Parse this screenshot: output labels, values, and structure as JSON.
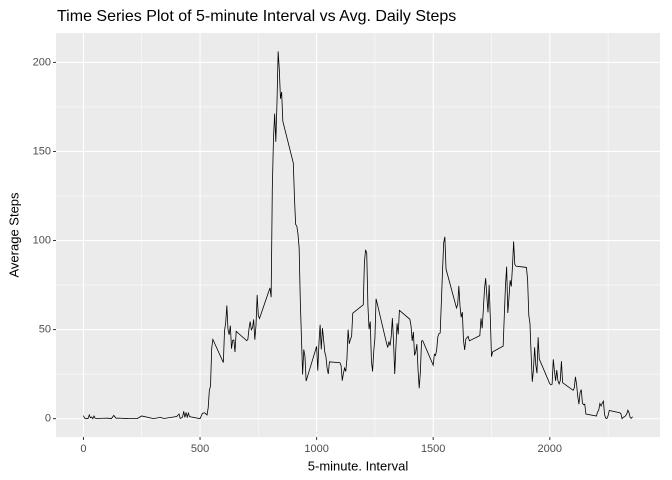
{
  "chart_data": {
    "type": "line",
    "title": "Time Series Plot of 5-minute Interval vs Avg. Daily Steps",
    "x_label": "5-minute. Interval",
    "y_label": "Average Steps",
    "color": "#000000",
    "grid": true,
    "xlim": [
      -117.75,
      2472.75
    ],
    "ylim": [
      -10.3,
      216.5
    ],
    "xticks": [
      0,
      500,
      1000,
      1500,
      2000
    ],
    "yticks": [
      0,
      50,
      100,
      150,
      200
    ],
    "x_minor_ticks": [
      250,
      750,
      1250,
      1750,
      2250
    ],
    "y_minor_ticks": [
      25,
      75,
      125,
      175
    ],
    "x": [
      0,
      5,
      10,
      15,
      20,
      25,
      30,
      35,
      40,
      45,
      50,
      55,
      100,
      110,
      120,
      130,
      140,
      150,
      200,
      230,
      250,
      300,
      330,
      345,
      400,
      410,
      415,
      420,
      425,
      430,
      435,
      440,
      445,
      450,
      455,
      500,
      510,
      520,
      530,
      535,
      540,
      545,
      550,
      555,
      600,
      605,
      610,
      615,
      620,
      625,
      630,
      635,
      640,
      645,
      650,
      655,
      700,
      705,
      710,
      715,
      720,
      725,
      730,
      735,
      740,
      745,
      750,
      755,
      800,
      805,
      810,
      815,
      820,
      825,
      830,
      835,
      840,
      845,
      850,
      855,
      900,
      905,
      910,
      915,
      920,
      925,
      930,
      935,
      940,
      945,
      950,
      955,
      1000,
      1005,
      1010,
      1015,
      1020,
      1025,
      1030,
      1035,
      1040,
      1045,
      1050,
      1055,
      1100,
      1105,
      1110,
      1115,
      1120,
      1125,
      1130,
      1135,
      1140,
      1145,
      1150,
      1155,
      1200,
      1205,
      1210,
      1215,
      1220,
      1225,
      1230,
      1235,
      1240,
      1245,
      1250,
      1255,
      1300,
      1305,
      1310,
      1315,
      1320,
      1325,
      1330,
      1335,
      1340,
      1345,
      1350,
      1355,
      1400,
      1405,
      1410,
      1415,
      1420,
      1425,
      1430,
      1435,
      1440,
      1445,
      1450,
      1455,
      1500,
      1505,
      1510,
      1515,
      1520,
      1525,
      1530,
      1535,
      1540,
      1545,
      1550,
      1555,
      1600,
      1605,
      1610,
      1615,
      1620,
      1625,
      1630,
      1635,
      1640,
      1645,
      1650,
      1655,
      1700,
      1705,
      1710,
      1715,
      1720,
      1725,
      1730,
      1735,
      1740,
      1745,
      1750,
      1755,
      1800,
      1805,
      1810,
      1815,
      1820,
      1825,
      1830,
      1835,
      1840,
      1845,
      1850,
      1855,
      1900,
      1905,
      1910,
      1915,
      1920,
      1925,
      1930,
      1935,
      1940,
      1945,
      1950,
      1955,
      2000,
      2005,
      2010,
      2015,
      2020,
      2025,
      2030,
      2035,
      2040,
      2045,
      2050,
      2055,
      2100,
      2105,
      2110,
      2115,
      2120,
      2125,
      2130,
      2135,
      2140,
      2145,
      2150,
      2155,
      2200,
      2205,
      2210,
      2215,
      2220,
      2225,
      2230,
      2235,
      2240,
      2245,
      2250,
      2255,
      2300,
      2305,
      2310,
      2315,
      2320,
      2325,
      2330,
      2335,
      2340,
      2345,
      2350,
      2355
    ],
    "values": [
      1.7,
      0.3,
      0.1,
      0.2,
      0.1,
      2.1,
      0.5,
      0.9,
      0,
      1.5,
      0.3,
      0.1,
      0.3,
      0.2,
      0,
      1.8,
      0.2,
      0.3,
      0,
      0,
      1.5,
      0,
      0.7,
      0.1,
      1.2,
      2.6,
      0.1,
      0.4,
      0.9,
      4.1,
      0.7,
      3.5,
      0.8,
      3.1,
      1.1,
      0,
      3,
      3.3,
      2.1,
      6.1,
      16,
      18.3,
      39.5,
      44.5,
      31.5,
      49.3,
      53.8,
      63.5,
      50,
      47.1,
      52.2,
      39.3,
      44,
      44.2,
      37.4,
      49,
      43.8,
      44.4,
      50.5,
      54.5,
      49.9,
      51,
      55.7,
      44.3,
      52.3,
      69.5,
      57.8,
      56.2,
      73.4,
      68.2,
      129.4,
      157.5,
      171.2,
      155.4,
      177.3,
      206.2,
      195.9,
      179.6,
      183.4,
      167,
      143.5,
      124,
      109.1,
      108.1,
      103.7,
      95.9,
      66.2,
      45.2,
      24.8,
      38.8,
      35,
      21.1,
      40.6,
      27,
      42.4,
      52.7,
      38.9,
      50.8,
      44.3,
      37.4,
      34.7,
      28.3,
      25.1,
      31.9,
      31.4,
      29.7,
      21.3,
      25.5,
      28.4,
      26.5,
      33.4,
      50,
      42,
      44.6,
      46,
      59.2,
      63.9,
      87.7,
      94.8,
      92.8,
      63.4,
      50.2,
      54.5,
      32.4,
      26.5,
      37.7,
      45.1,
      67.3,
      42.3,
      39.9,
      43.3,
      41,
      46.2,
      56.4,
      42.8,
      25.1,
      40,
      53.5,
      47.3,
      60.8,
      55.8,
      52,
      43.6,
      48.7,
      35.5,
      37.5,
      41.8,
      27.5,
      17.1,
      26.1,
      43.6,
      43.8,
      30,
      36.1,
      35.5,
      38.8,
      46,
      47.8,
      48.1,
      65.3,
      82.9,
      98.7,
      102.1,
      84,
      62.1,
      64.1,
      74.5,
      63.2,
      56.9,
      59.8,
      43.9,
      38.6,
      44.7,
      45.5,
      46.2,
      43.7,
      46.6,
      56.3,
      50.7,
      61.2,
      72.7,
      78.9,
      68.9,
      59.7,
      75.1,
      56.5,
      34.8,
      37.5,
      40.7,
      58,
      74.7,
      85.3,
      59.3,
      67.8,
      77.7,
      74.2,
      85.3,
      99.5,
      86.6,
      85.6,
      84.9,
      77.8,
      58,
      53.4,
      36.3,
      20.7,
      27.4,
      40,
      30.2,
      25.5,
      45.7,
      33.5,
      19.6,
      19,
      19.3,
      33.3,
      26.8,
      21.2,
      27.3,
      21.3,
      19.5,
      21.3,
      32.3,
      20.2,
      15.9,
      17.2,
      23.5,
      19.2,
      12.5,
      8.1,
      14.7,
      16.3,
      8.7,
      7.8,
      8.1,
      2.6,
      1.5,
      3.7,
      4.8,
      8.5,
      7.1,
      8.7,
      9.8,
      2.2,
      0.3,
      0.1,
      1.6,
      4.6,
      3.3,
      2.8,
      0,
      0.8,
      1,
      1.6,
      2.6,
      4.7,
      3.3,
      0.6,
      0.2,
      1.1
    ]
  }
}
